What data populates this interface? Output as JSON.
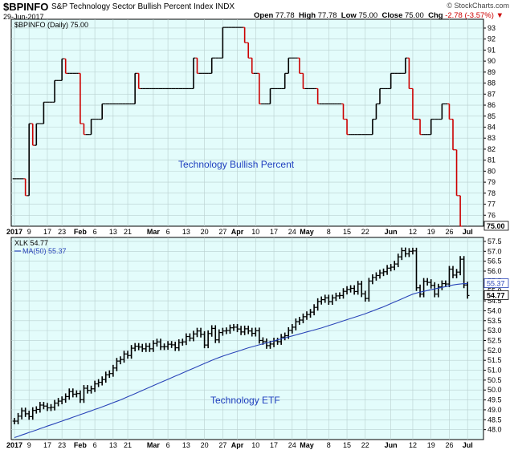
{
  "header": {
    "symbol": "$BPINFO",
    "description": "S&P Technology Sector Bullish Percent Index",
    "exchange": "INDX",
    "date": "29-Jun-2017",
    "open_label": "Open",
    "open": "77.78",
    "high_label": "High",
    "high": "77.78",
    "low_label": "Low",
    "low": "75.00",
    "close_label": "Close",
    "close": "75.00",
    "chg_label": "Chg",
    "chg": "-2.78 (-3.57%)",
    "brand": "© StockCharts.com"
  },
  "colors": {
    "panel_bg": "#e3fcfb",
    "up": "#000000",
    "down": "#cc0000",
    "ma": "#2a45b8",
    "annotation": "#1f3fbf"
  },
  "x_axis": {
    "labels": [
      {
        "label": "2017",
        "index": 0,
        "bold": true
      },
      {
        "label": "9",
        "index": 4
      },
      {
        "label": "17",
        "index": 9
      },
      {
        "label": "23",
        "index": 13
      },
      {
        "label": "Feb",
        "index": 18,
        "bold": true
      },
      {
        "label": "6",
        "index": 22
      },
      {
        "label": "13",
        "index": 27
      },
      {
        "label": "21",
        "index": 31
      },
      {
        "label": "Mar",
        "index": 38,
        "bold": true
      },
      {
        "label": "6",
        "index": 42
      },
      {
        "label": "13",
        "index": 47
      },
      {
        "label": "20",
        "index": 52
      },
      {
        "label": "27",
        "index": 57
      },
      {
        "label": "Apr",
        "index": 61,
        "bold": true
      },
      {
        "label": "10",
        "index": 66
      },
      {
        "label": "17",
        "index": 71
      },
      {
        "label": "24",
        "index": 76
      },
      {
        "label": "May",
        "index": 80,
        "bold": true
      },
      {
        "label": "8",
        "index": 86
      },
      {
        "label": "15",
        "index": 91
      },
      {
        "label": "22",
        "index": 96
      },
      {
        "label": "Jun",
        "index": 103,
        "bold": true
      },
      {
        "label": "12",
        "index": 109
      },
      {
        "label": "19",
        "index": 114
      },
      {
        "label": "26",
        "index": 119
      },
      {
        "label": "Jul",
        "index": 124,
        "bold": true
      }
    ]
  },
  "chart_data": [
    {
      "type": "line",
      "title": "$BPINFO (Daily) 75.00",
      "annotation": "Technology Bullish Percent",
      "ylim": [
        75,
        93.8
      ],
      "yticks": [
        76,
        77,
        78,
        79,
        80,
        81,
        82,
        83,
        84,
        85,
        86,
        87,
        88,
        89,
        90,
        91,
        92,
        93
      ],
      "last_value_label": "75.00",
      "closes": [
        79.31,
        79.31,
        79.31,
        77.78,
        84.31,
        82.35,
        84.31,
        84.31,
        86.27,
        86.27,
        86.27,
        88.24,
        88.24,
        90.2,
        88.89,
        88.89,
        88.89,
        88.89,
        84.31,
        83.33,
        83.33,
        84.72,
        84.72,
        84.72,
        86.11,
        86.11,
        86.11,
        86.11,
        86.11,
        86.11,
        86.11,
        86.11,
        86.11,
        88.89,
        87.5,
        87.5,
        87.5,
        87.5,
        87.5,
        87.5,
        87.5,
        87.5,
        87.5,
        87.5,
        87.5,
        87.5,
        87.5,
        87.5,
        87.5,
        90.28,
        88.89,
        88.89,
        88.89,
        88.89,
        90.28,
        90.28,
        90.28,
        93.06,
        93.06,
        93.06,
        93.06,
        93.06,
        93.06,
        91.67,
        90.28,
        88.89,
        88.89,
        86.11,
        86.11,
        86.11,
        87.5,
        87.5,
        87.5,
        87.5,
        88.89,
        90.28,
        90.28,
        90.28,
        88.89,
        87.5,
        87.5,
        87.5,
        87.5,
        86.11,
        86.11,
        86.11,
        86.11,
        86.11,
        86.11,
        86.11,
        84.72,
        83.33,
        83.33,
        83.33,
        83.33,
        83.33,
        83.33,
        83.33,
        84.72,
        86.11,
        87.5,
        87.5,
        87.5,
        88.89,
        88.89,
        88.89,
        88.89,
        90.28,
        87.5,
        84.72,
        84.72,
        83.33,
        83.33,
        83.33,
        84.72,
        84.72,
        84.72,
        86.11,
        86.11,
        84.72,
        81.94,
        77.78,
        75.0
      ]
    },
    {
      "type": "line",
      "title": "XLK 54.77",
      "ma_label": "MA(50) 55.37",
      "annotation": "Technology ETF",
      "ylim": [
        47.5,
        57.7
      ],
      "yticks": [
        48.0,
        48.5,
        49.0,
        49.5,
        50.0,
        50.5,
        51.0,
        51.5,
        52.0,
        52.5,
        53.0,
        53.5,
        54.0,
        54.5,
        55.0,
        55.5,
        56.0,
        56.5,
        57.0,
        57.5
      ],
      "last_value_label": "54.77",
      "ma_value_label": "55.37",
      "closes": [
        48.43,
        48.68,
        48.95,
        48.8,
        48.66,
        48.97,
        49.02,
        49.24,
        49.19,
        49.1,
        49.13,
        49.34,
        49.44,
        49.52,
        49.67,
        49.92,
        49.79,
        49.82,
        49.51,
        50.09,
        49.98,
        50.06,
        50.31,
        50.39,
        50.53,
        50.77,
        50.83,
        51.11,
        51.46,
        51.54,
        51.82,
        51.74,
        52.11,
        52.21,
        52.17,
        52.08,
        52.21,
        52.08,
        52.35,
        52.43,
        52.18,
        52.19,
        52.31,
        52.28,
        52.13,
        52.4,
        52.43,
        52.7,
        52.62,
        52.83,
        52.98,
        52.81,
        52.27,
        52.85,
        53.11,
        52.53,
        52.9,
        52.98,
        53.0,
        53.14,
        53.17,
        53.08,
        52.93,
        53.09,
        52.98,
        52.86,
        52.99,
        52.5,
        52.44,
        52.24,
        52.32,
        52.48,
        52.44,
        52.67,
        52.74,
        53.01,
        53.17,
        53.45,
        53.53,
        53.7,
        53.81,
        53.93,
        54.17,
        54.47,
        54.56,
        54.65,
        54.46,
        54.65,
        54.75,
        54.77,
        54.98,
        55.08,
        55.13,
        54.97,
        55.35,
        54.85,
        54.62,
        55.5,
        55.68,
        55.78,
        55.91,
        55.97,
        56.15,
        56.2,
        56.36,
        56.72,
        57.03,
        56.87,
        57.0,
        57.02,
        55.16,
        54.84,
        55.49,
        55.43,
        55.28,
        54.84,
        55.2,
        55.37,
        55.35,
        56.1,
        55.8,
        55.95,
        56.6,
        55.3,
        54.77
      ],
      "ma50": [
        47.6,
        47.66,
        47.73,
        47.79,
        47.86,
        47.92,
        47.98,
        48.05,
        48.11,
        48.18,
        48.24,
        48.3,
        48.37,
        48.43,
        48.5,
        48.56,
        48.63,
        48.69,
        48.76,
        48.82,
        48.89,
        48.95,
        49.02,
        49.08,
        49.15,
        49.22,
        49.29,
        49.36,
        49.43,
        49.5,
        49.58,
        49.66,
        49.74,
        49.82,
        49.9,
        49.98,
        50.06,
        50.14,
        50.22,
        50.3,
        50.38,
        50.46,
        50.54,
        50.62,
        50.7,
        50.78,
        50.86,
        50.94,
        51.02,
        51.1,
        51.18,
        51.26,
        51.34,
        51.42,
        51.5,
        51.57,
        51.64,
        51.71,
        51.77,
        51.83,
        51.89,
        51.95,
        52.01,
        52.07,
        52.13,
        52.18,
        52.23,
        52.28,
        52.33,
        52.38,
        52.43,
        52.48,
        52.53,
        52.58,
        52.63,
        52.68,
        52.73,
        52.78,
        52.83,
        52.88,
        52.93,
        52.98,
        53.03,
        53.08,
        53.13,
        53.19,
        53.25,
        53.31,
        53.37,
        53.43,
        53.49,
        53.55,
        53.61,
        53.67,
        53.73,
        53.79,
        53.85,
        53.92,
        53.99,
        54.06,
        54.13,
        54.2,
        54.28,
        54.36,
        54.44,
        54.52,
        54.6,
        54.68,
        54.76,
        54.84,
        54.89,
        54.94,
        54.98,
        55.02,
        55.06,
        55.1,
        55.14,
        55.18,
        55.22,
        55.26,
        55.3,
        55.33,
        55.35,
        55.37,
        55.37
      ]
    }
  ]
}
